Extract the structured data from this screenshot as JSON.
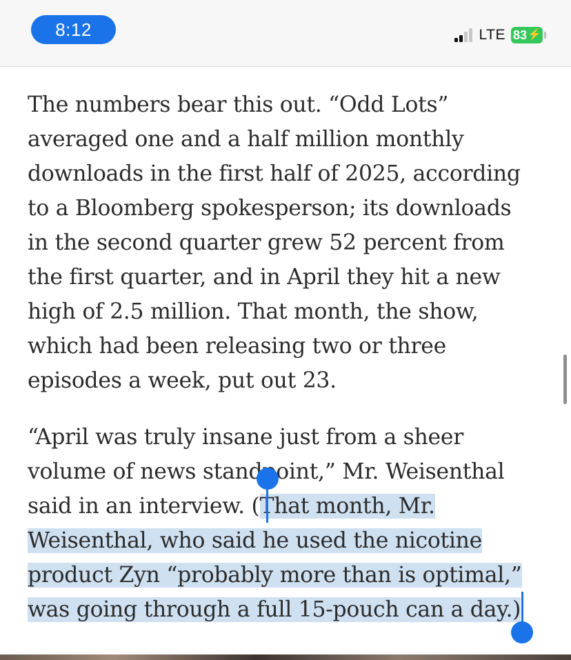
{
  "status_bar": {
    "time": "8:12",
    "network": "LTE",
    "battery_level": "83"
  },
  "article": {
    "p1_lines": [
      "The numbers bear this out. “Odd Lots”",
      "averaged one and a half million monthly",
      "downloads in the first half of 2025, according",
      "to a Bloomberg spokesperson; its downloads",
      "in the second quarter grew 52 percent from",
      "the first quarter, and in April they hit a new",
      "high of 2.5 million. That month, the show,",
      "which had been releasing two or three",
      "episodes a week, put out 23."
    ],
    "p2_line1": "“April was truly insane just from a sheer",
    "p2_line2": "volume of news standpoint,” Mr. Weisenthal",
    "p2_line3_plain": "said in an interview. (",
    "p2_line3_sel": "That month, Mr.",
    "p2_line4_sel": "Weisenthal, who said he used the nicotine",
    "p2_line5_sel": "product Zyn “probably more than is optimal,”",
    "p2_line6_sel": "was going through a full 15-pouch can a day.)"
  },
  "colors": {
    "accent": "#1a73e8",
    "selection": "#cfe0f1",
    "battery": "#34c759"
  }
}
